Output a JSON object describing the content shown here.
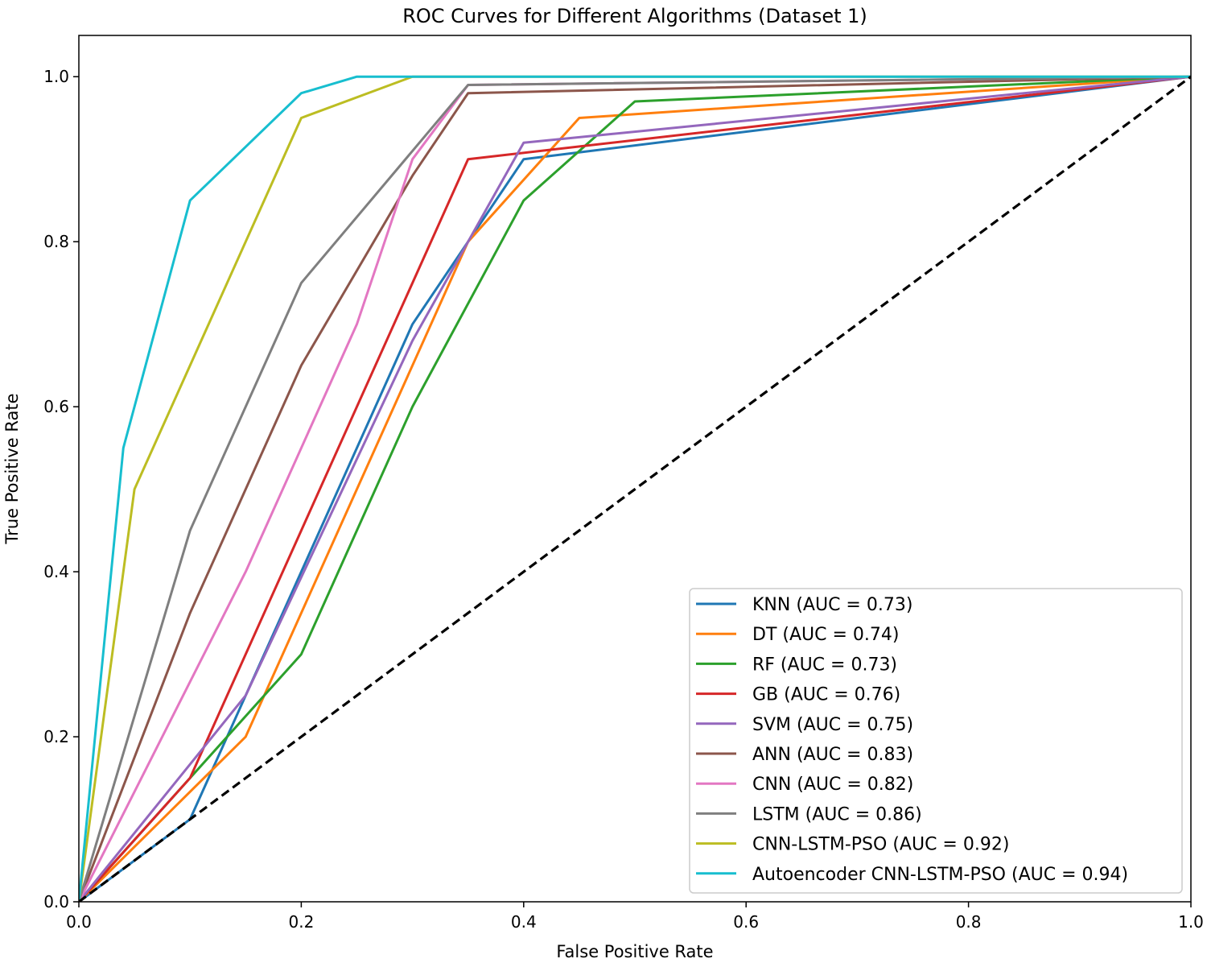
{
  "chart_data": {
    "type": "line",
    "title": "ROC Curves for Different Algorithms (Dataset 1)",
    "xlabel": "False Positive Rate",
    "ylabel": "True Positive Rate",
    "xlim": [
      0.0,
      1.0
    ],
    "ylim": [
      0.0,
      1.05
    ],
    "x_ticks": [
      0.0,
      0.2,
      0.4,
      0.6,
      0.8,
      1.0
    ],
    "y_ticks": [
      0.0,
      0.2,
      0.4,
      0.6,
      0.8,
      1.0
    ],
    "x_tick_labels": [
      "0.0",
      "0.2",
      "0.4",
      "0.6",
      "0.8",
      "1.0"
    ],
    "y_tick_labels": [
      "0.0",
      "0.2",
      "0.4",
      "0.6",
      "0.8",
      "1.0"
    ],
    "grid": false,
    "legend_position": "lower-right",
    "series": [
      {
        "name": "KNN",
        "label": "KNN (AUC = 0.73)",
        "color": "#1f77b4",
        "x": [
          0,
          0.1,
          0.3,
          0.4,
          1.0
        ],
        "y": [
          0,
          0.1,
          0.7,
          0.9,
          1.0
        ]
      },
      {
        "name": "DT",
        "label": "DT (AUC = 0.74)",
        "color": "#ff7f0e",
        "x": [
          0,
          0.15,
          0.35,
          0.45,
          1.0
        ],
        "y": [
          0,
          0.2,
          0.8,
          0.95,
          1.0
        ]
      },
      {
        "name": "RF",
        "label": "RF (AUC = 0.73)",
        "color": "#2ca02c",
        "x": [
          0,
          0.1,
          0.2,
          0.3,
          0.4,
          0.5,
          1.0
        ],
        "y": [
          0,
          0.15,
          0.3,
          0.6,
          0.85,
          0.97,
          1.0
        ]
      },
      {
        "name": "GB",
        "label": "GB (AUC = 0.76)",
        "color": "#d62728",
        "x": [
          0,
          0.1,
          0.2,
          0.35,
          1.0
        ],
        "y": [
          0,
          0.15,
          0.45,
          0.9,
          1.0
        ]
      },
      {
        "name": "SVM",
        "label": "SVM (AUC = 0.75)",
        "color": "#9467bd",
        "x": [
          0,
          0.15,
          0.3,
          0.4,
          1.0
        ],
        "y": [
          0,
          0.25,
          0.68,
          0.92,
          1.0
        ]
      },
      {
        "name": "ANN",
        "label": "ANN (AUC = 0.83)",
        "color": "#8c564b",
        "x": [
          0,
          0.1,
          0.2,
          0.3,
          0.35,
          1.0
        ],
        "y": [
          0,
          0.35,
          0.65,
          0.88,
          0.98,
          1.0
        ]
      },
      {
        "name": "CNN",
        "label": "CNN (AUC = 0.82)",
        "color": "#e377c2",
        "x": [
          0,
          0.15,
          0.25,
          0.3,
          0.35,
          1.0
        ],
        "y": [
          0,
          0.4,
          0.7,
          0.9,
          0.99,
          1.0
        ]
      },
      {
        "name": "LSTM",
        "label": "LSTM (AUC = 0.86)",
        "color": "#7f7f7f",
        "x": [
          0,
          0.1,
          0.2,
          0.35,
          1.0
        ],
        "y": [
          0,
          0.45,
          0.75,
          0.99,
          1.0
        ]
      },
      {
        "name": "CNN-LSTM-PSO",
        "label": "CNN-LSTM-PSO (AUC = 0.92)",
        "color": "#bcbd22",
        "x": [
          0,
          0.05,
          0.2,
          0.3,
          1.0
        ],
        "y": [
          0,
          0.5,
          0.95,
          1.0,
          1.0
        ]
      },
      {
        "name": "Autoencoder CNN-LSTM-PSO",
        "label": "Autoencoder CNN-LSTM-PSO (AUC = 0.94)",
        "color": "#17becf",
        "x": [
          0,
          0.04,
          0.1,
          0.2,
          0.25,
          1.0
        ],
        "y": [
          0,
          0.55,
          0.85,
          0.98,
          1.0,
          1.0
        ]
      }
    ],
    "reference_line": {
      "name": "chance",
      "x": [
        0,
        1
      ],
      "y": [
        0,
        1
      ],
      "color": "#000000",
      "style": "dashed"
    }
  }
}
